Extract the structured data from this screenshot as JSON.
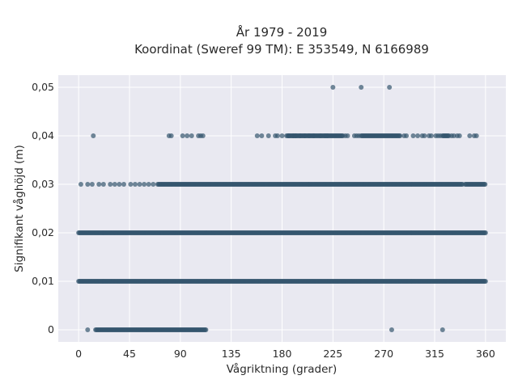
{
  "chart_data": {
    "type": "scatter",
    "title_line1": "År 1979 - 2019",
    "title_line2": "Koordinat (Sweref 99 TM): E 353549, N 6166989",
    "xlabel": "Vågriktning (grader)",
    "ylabel": "Signifikant våghöjd (m)",
    "xlim": [
      -18,
      378
    ],
    "ylim": [
      -0.0025,
      0.0525
    ],
    "xticks": [
      0,
      45,
      90,
      135,
      180,
      225,
      270,
      315,
      360
    ],
    "yticks": [
      0,
      0.01,
      0.02,
      0.03,
      0.04,
      0.05
    ],
    "ytick_labels": [
      "0",
      "0,01",
      "0,02",
      "0,03",
      "0,04",
      "0,05"
    ],
    "grid": true,
    "marker_color": "#34566e",
    "background_color": "#e9e9f1",
    "series": [
      {
        "y": 0,
        "x": [
          8,
          277,
          322
        ],
        "dense_ranges": [
          [
            15,
            113
          ]
        ]
      },
      {
        "y": 0.01,
        "x": [],
        "dense_ranges": [
          [
            0,
            360
          ]
        ]
      },
      {
        "y": 0.02,
        "x": [],
        "dense_ranges": [
          [
            0,
            360
          ]
        ]
      },
      {
        "y": 0.03,
        "x": [
          2,
          8,
          12,
          18,
          22,
          28,
          32,
          36,
          40,
          46,
          50,
          54,
          58,
          62,
          66
        ],
        "dense_ranges": [
          [
            70,
            340
          ],
          [
            342,
            360
          ]
        ]
      },
      {
        "y": 0.04,
        "x": [
          13,
          80,
          82,
          92,
          96,
          100,
          106,
          108,
          110,
          158,
          162,
          168,
          174,
          176,
          180,
          184,
          186,
          190,
          192,
          196,
          200,
          204,
          208,
          214,
          218,
          220,
          236,
          238,
          244,
          246,
          248,
          288,
          290,
          296,
          300,
          304,
          306,
          310,
          312,
          316,
          318,
          320,
          330,
          332,
          335,
          337,
          346,
          350,
          352
        ],
        "dense_ranges": [
          [
            185,
            234
          ],
          [
            250,
            285
          ],
          [
            322,
            328
          ]
        ]
      },
      {
        "y": 0.05,
        "x": [
          225,
          250,
          275
        ],
        "dense_ranges": []
      }
    ]
  }
}
